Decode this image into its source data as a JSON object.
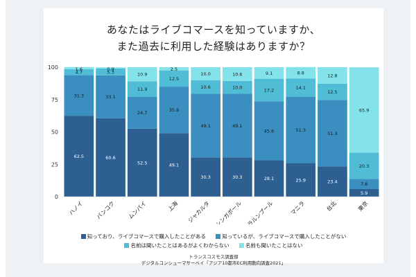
{
  "chart_data": {
    "type": "bar",
    "stacked": true,
    "title_line1": "あなたはライブコマースを知っていますか、",
    "title_line2": "また過去に利用した経験はありますか？",
    "categories": [
      "ハノイ",
      "バンコク",
      "ムンバイ",
      "上海",
      "ジャカルタ",
      "シンガポール",
      "クアラルンプール",
      "マニラ",
      "台北",
      "東京"
    ],
    "ylim": [
      0,
      100
    ],
    "yticks": [
      0,
      25,
      50,
      75,
      100
    ],
    "series": [
      {
        "name": "知っており、ライブコマースで購入したことがある",
        "color": "#2e5f91",
        "label_color": "#ffffff",
        "values": [
          62.5,
          60.6,
          52.5,
          49.1,
          30.3,
          30.3,
          28.1,
          25.9,
          23.4,
          5.9
        ]
      },
      {
        "name": "知っているが、ライブコマースで購入したことがない",
        "color": "#3a8ec0",
        "label_color": "#1a1a1a",
        "values": [
          31.3,
          33.1,
          24.7,
          35.9,
          49.1,
          49.1,
          45.6,
          51.3,
          51.3,
          7.8
        ]
      },
      {
        "name": "名前は聞いたことはあるがよくわからない",
        "color": "#51bcd6",
        "label_color": "#1a1a1a",
        "values": [
          4.7,
          5.3,
          11.9,
          12.5,
          10.6,
          10.0,
          17.2,
          14.1,
          12.5,
          20.3
        ]
      },
      {
        "name": "名前も聞いたことはない",
        "color": "#84e3ea",
        "label_color": "#1a1a1a",
        "values": [
          1.6,
          0.9,
          10.9,
          2.5,
          10.0,
          10.6,
          9.1,
          8.8,
          12.8,
          65.9
        ]
      }
    ],
    "legend_position": "bottom",
    "grid": false
  },
  "source": {
    "line1": "トランスコスモス調査部",
    "line2": "デジタルコンシューマサーベイ「アジア10都市EC利用動向調査2021」"
  }
}
